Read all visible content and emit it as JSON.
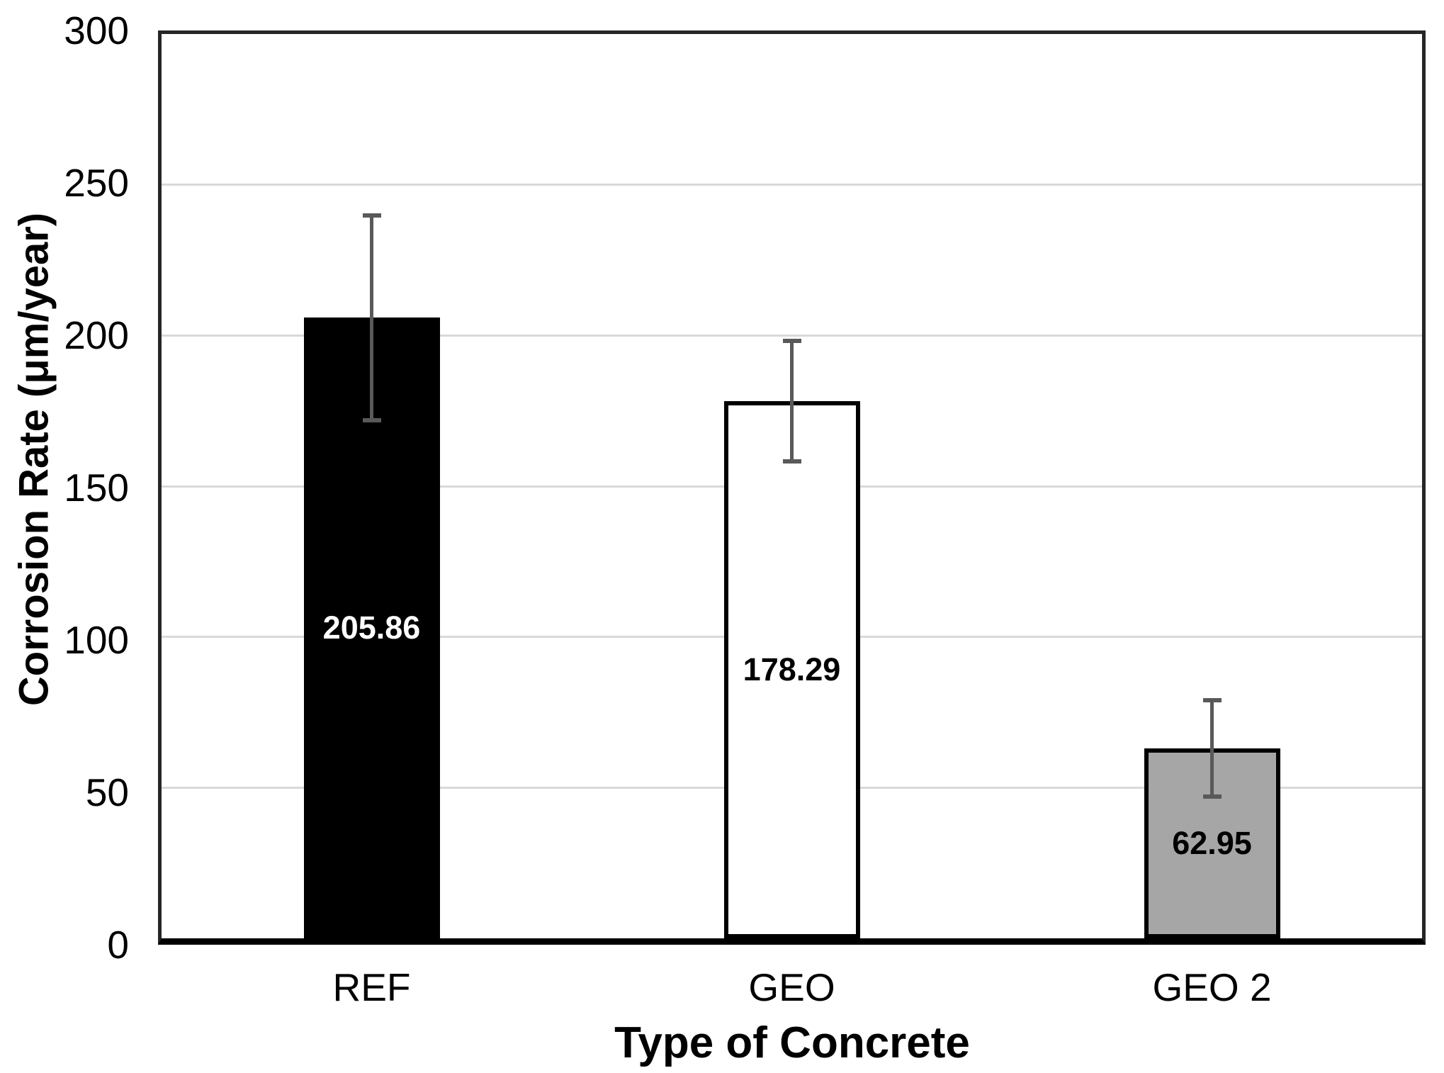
{
  "figure": {
    "background_color": "#ffffff"
  },
  "chart_data": {
    "type": "bar",
    "title": "",
    "xlabel": "Type of Concrete",
    "ylabel": "Corrosion Rate (μm/year)",
    "categories": [
      "REF",
      "GEO",
      "GEO 2"
    ],
    "values": [
      205.86,
      178.29,
      62.95
    ],
    "value_labels": [
      "205.86",
      "178.29",
      "62.95"
    ],
    "error_bars": [
      34,
      20,
      16
    ],
    "ylim": [
      0,
      300
    ],
    "yticks": [
      0,
      50,
      100,
      150,
      200,
      250,
      300
    ],
    "grid": true,
    "legend_position": "none",
    "label_position": "inside-center",
    "colors": {
      "bar_fills": [
        "#000000",
        "#ffffff",
        "#a6a6a6"
      ],
      "bar_border": "#000000",
      "label_colors": [
        "#ffffff",
        "#000000",
        "#000000"
      ],
      "gridline": "#d9d9d9",
      "error_bar": "#595959",
      "axis_border": "#262626",
      "axis_line": "#000000",
      "text": "#000000"
    }
  }
}
